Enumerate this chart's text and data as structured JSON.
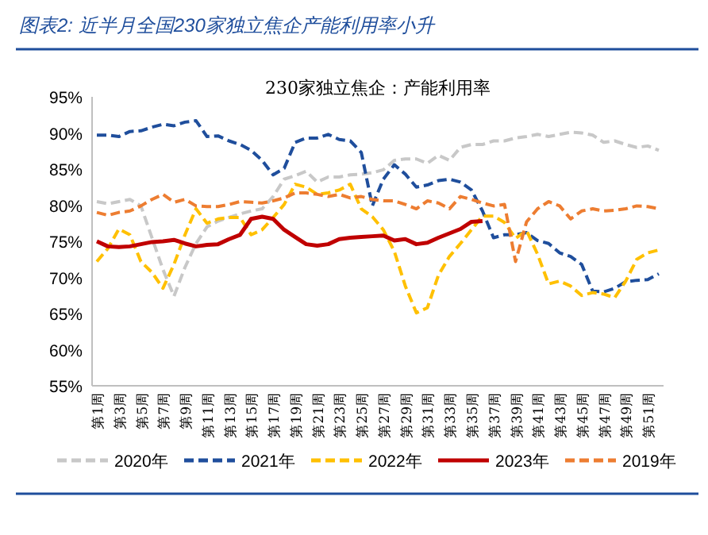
{
  "chart_data": {
    "type": "line",
    "title": "图表2: 近半月全国230家独立焦企产能利用率小升",
    "subtitle": "230家独立焦企：产能利用率",
    "categories": [
      "第1周",
      null,
      "第3周",
      null,
      "第5周",
      null,
      "第7周",
      null,
      "第9周",
      null,
      "第11周",
      null,
      "第13周",
      null,
      "第15周",
      null,
      "第17周",
      null,
      "第19周",
      null,
      "第21周",
      null,
      "第23周",
      null,
      "第25周",
      null,
      "第27周",
      null,
      "第29周",
      null,
      "第31周",
      null,
      "第33周",
      null,
      "第35周",
      null,
      "第37周",
      null,
      "第39周",
      null,
      "第41周",
      null,
      "第43周",
      null,
      "第45周",
      null,
      "第47周",
      null,
      "第49周",
      null,
      "第51周",
      null
    ],
    "ylim": [
      55,
      95
    ],
    "yticks": [
      {
        "value": 55,
        "label": "55%"
      },
      {
        "value": 60,
        "label": "60%"
      },
      {
        "value": 65,
        "label": "65%"
      },
      {
        "value": 70,
        "label": "70%"
      },
      {
        "value": 75,
        "label": "75%"
      },
      {
        "value": 80,
        "label": "80%"
      },
      {
        "value": 85,
        "label": "85%"
      },
      {
        "value": 90,
        "label": "90%"
      },
      {
        "value": 95,
        "label": "95%"
      }
    ],
    "legend": "bottom",
    "marker": "none",
    "series": [
      {
        "name": "2020年",
        "color": "#c8c8c8",
        "line_style": "dashed",
        "values": [
          80.5,
          80.2,
          80.5,
          80.8,
          79.9,
          75.5,
          71.1,
          67.4,
          71.4,
          74.7,
          77.0,
          77.8,
          78.3,
          78.8,
          79.2,
          79.5,
          81.2,
          83.6,
          84.1,
          84.7,
          83.2,
          83.9,
          83.9,
          84.2,
          84.3,
          84.5,
          84.9,
          86.2,
          86.4,
          86.4,
          85.8,
          86.9,
          86.2,
          88.0,
          88.4,
          88.4,
          88.9,
          88.9,
          89.3,
          89.5,
          89.8,
          89.5,
          89.8,
          90.1,
          90.0,
          89.7,
          88.7,
          88.9,
          88.4,
          88.0,
          88.2,
          87.6
        ]
      },
      {
        "name": "2021年",
        "color": "#1f4e9c",
        "line_style": "dashed",
        "values": [
          89.7,
          89.7,
          89.5,
          90.2,
          90.3,
          90.8,
          91.2,
          91.0,
          91.5,
          91.7,
          89.5,
          89.6,
          88.9,
          88.4,
          87.6,
          86.2,
          84.2,
          85.1,
          88.7,
          89.3,
          89.3,
          89.8,
          89.1,
          88.9,
          87.3,
          79.9,
          83.6,
          85.6,
          84.3,
          82.5,
          82.8,
          83.4,
          83.6,
          83.2,
          82.1,
          79.2,
          75.5,
          75.9,
          75.9,
          76.2,
          75.1,
          74.7,
          73.4,
          72.9,
          71.8,
          68.1,
          68.0,
          68.5,
          69.4,
          69.6,
          69.7,
          70.5
        ]
      },
      {
        "name": "2022年",
        "color": "#ffc000",
        "line_style": "dashed",
        "values": [
          72.2,
          74.0,
          76.7,
          75.9,
          72.2,
          70.7,
          68.5,
          71.8,
          75.9,
          79.5,
          77.5,
          78.1,
          78.3,
          78.3,
          75.9,
          76.6,
          78.3,
          80.1,
          82.9,
          82.5,
          81.5,
          81.7,
          82.1,
          82.9,
          79.5,
          78.4,
          76.6,
          73.6,
          68.8,
          65.1,
          65.8,
          70.3,
          72.9,
          74.7,
          76.6,
          78.5,
          78.5,
          77.6,
          75.4,
          76.5,
          73.2,
          69.1,
          69.5,
          68.8,
          67.5,
          67.9,
          67.7,
          67.2,
          69.5,
          72.5,
          73.4,
          73.8
        ]
      },
      {
        "name": "2023年",
        "color": "#c00000",
        "line_style": "solid",
        "values": [
          75.0,
          74.3,
          74.2,
          74.3,
          74.6,
          74.9,
          75.0,
          75.2,
          74.7,
          74.3,
          74.5,
          74.6,
          75.3,
          75.9,
          78.1,
          78.4,
          78.1,
          76.6,
          75.6,
          74.6,
          74.4,
          74.6,
          75.3,
          75.5,
          75.6,
          75.7,
          75.8,
          75.1,
          75.3,
          74.6,
          74.8,
          75.5,
          76.1,
          76.7,
          77.7,
          77.8,
          null,
          null,
          null,
          null,
          null,
          null,
          null,
          null,
          null,
          null,
          null,
          null,
          null,
          null,
          null,
          null
        ]
      },
      {
        "name": "2019年",
        "color": "#ed7d31",
        "line_style": "dashed",
        "values": [
          79.0,
          78.6,
          79.0,
          79.2,
          79.9,
          80.8,
          81.5,
          80.4,
          80.8,
          79.9,
          79.8,
          79.8,
          80.1,
          80.5,
          80.4,
          80.3,
          80.6,
          81.0,
          81.7,
          81.7,
          81.5,
          81.2,
          81.5,
          81.0,
          81.2,
          80.8,
          80.6,
          80.6,
          80.1,
          79.5,
          80.6,
          80.3,
          79.5,
          81.2,
          80.8,
          80.3,
          79.9,
          80.1,
          72.2,
          77.7,
          79.5,
          80.5,
          79.9,
          78.1,
          79.2,
          79.5,
          79.2,
          79.3,
          79.5,
          79.9,
          79.8,
          79.5
        ]
      }
    ]
  }
}
